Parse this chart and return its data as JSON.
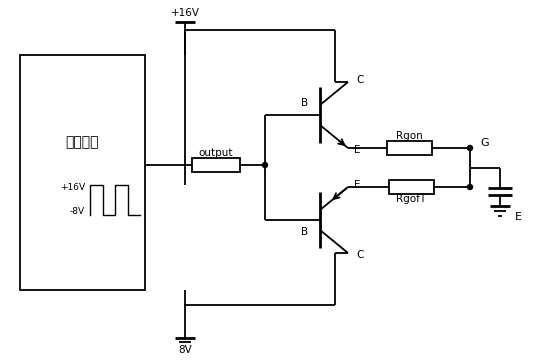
{
  "bg_color": "#ffffff",
  "fig_width": 5.39,
  "fig_height": 3.6,
  "dpi": 100,
  "labels": {
    "chip": "驱动芯片",
    "output": "output",
    "v_pos_top": "+16V",
    "v_pos_wave": "+16V",
    "v_neg_wave": "-8V",
    "v_neg_bot": "-8V",
    "v_neg_label": "8V",
    "rgon": "Rgon",
    "rgoff": "RgofT",
    "G_label": "G",
    "E_label": "E",
    "B_top": "B",
    "E_top": "E",
    "C_top": "C",
    "B_bot": "B",
    "E_bot": "E",
    "C_bot": "C"
  }
}
